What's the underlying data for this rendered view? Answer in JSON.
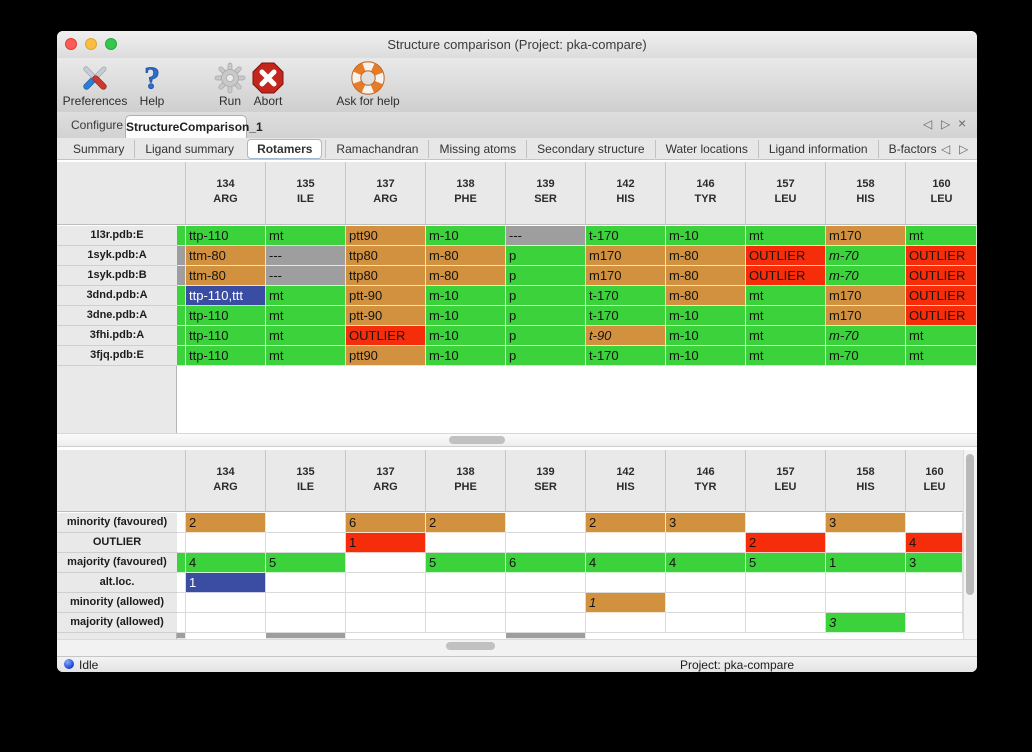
{
  "window": {
    "title": "Structure comparison (Project: pka-compare)"
  },
  "titlebar": {
    "buttons": [
      "close",
      "minimize",
      "zoom"
    ]
  },
  "toolbar": {
    "items": [
      {
        "label": "Preferences",
        "icon": "tools-icon"
      },
      {
        "label": "Help",
        "icon": "help-icon"
      },
      {
        "label": "Run",
        "icon": "gear-icon"
      },
      {
        "label": "Abort",
        "icon": "abort-icon"
      },
      {
        "label": "Ask for help",
        "icon": "lifebuoy-icon"
      }
    ]
  },
  "tabs": {
    "items": [
      {
        "label": "Configure",
        "selected": false
      },
      {
        "label": "StructureComparison_1",
        "selected": true
      }
    ],
    "controls": {
      "prev": "◁",
      "next": "▷",
      "close": "×"
    }
  },
  "subtabs": {
    "items": [
      "Summary",
      "Ligand summary",
      "Rotamers",
      "Ramachandran",
      "Missing atoms",
      "Secondary structure",
      "Water locations",
      "Ligand information",
      "B-factors"
    ],
    "selected": "Rotamers",
    "controls": {
      "prev": "◁",
      "next": "▷"
    }
  },
  "palette": {
    "green": "#3cd23c",
    "orange": "#d2913f",
    "red": "#f62d0a",
    "blue": "#3b4da2",
    "gray": "#9e9e9e"
  },
  "columns": [
    [
      "134",
      "ARG"
    ],
    [
      "135",
      "ILE"
    ],
    [
      "137",
      "ARG"
    ],
    [
      "138",
      "PHE"
    ],
    [
      "139",
      "SER"
    ],
    [
      "142",
      "HIS"
    ],
    [
      "146",
      "TYR"
    ],
    [
      "157",
      "LEU"
    ],
    [
      "158",
      "HIS"
    ],
    [
      "160",
      "LEU"
    ]
  ],
  "rotamer_table": {
    "rows": [
      {
        "label": "1l3r.pdb:E",
        "strip": "green",
        "cells": [
          [
            "ttp-110",
            "green"
          ],
          [
            "mt",
            "green"
          ],
          [
            "ptt90",
            "orange"
          ],
          [
            "m-10",
            "green"
          ],
          [
            "---",
            "gray"
          ],
          [
            "t-170",
            "green"
          ],
          [
            "m-10",
            "green"
          ],
          [
            "mt",
            "green"
          ],
          [
            "m170",
            "orange"
          ],
          [
            "mt",
            "green"
          ]
        ]
      },
      {
        "label": "1syk.pdb:A",
        "strip": "gray",
        "cells": [
          [
            "ttm-80",
            "orange"
          ],
          [
            "---",
            "gray"
          ],
          [
            "ttp80",
            "orange"
          ],
          [
            "m-80",
            "orange"
          ],
          [
            "p",
            "green"
          ],
          [
            "m170",
            "orange"
          ],
          [
            "m-80",
            "orange"
          ],
          [
            "OUTLIER",
            "red"
          ],
          [
            "m-70",
            "green",
            "i"
          ],
          [
            "OUTLIER",
            "red"
          ]
        ]
      },
      {
        "label": "1syk.pdb:B",
        "strip": "gray",
        "cells": [
          [
            "ttm-80",
            "orange"
          ],
          [
            "---",
            "gray"
          ],
          [
            "ttp80",
            "orange"
          ],
          [
            "m-80",
            "orange"
          ],
          [
            "p",
            "green"
          ],
          [
            "m170",
            "orange"
          ],
          [
            "m-80",
            "orange"
          ],
          [
            "OUTLIER",
            "red"
          ],
          [
            "m-70",
            "green",
            "i"
          ],
          [
            "OUTLIER",
            "red"
          ]
        ]
      },
      {
        "label": "3dnd.pdb:A",
        "strip": "green",
        "cells": [
          [
            "ttp-110,ttt",
            "blue",
            "sel"
          ],
          [
            "mt",
            "green"
          ],
          [
            "ptt-90",
            "orange"
          ],
          [
            "m-10",
            "green"
          ],
          [
            "p",
            "green"
          ],
          [
            "t-170",
            "green"
          ],
          [
            "m-80",
            "orange"
          ],
          [
            "mt",
            "green"
          ],
          [
            "m170",
            "orange"
          ],
          [
            "OUTLIER",
            "red"
          ]
        ]
      },
      {
        "label": "3dne.pdb:A",
        "strip": "green",
        "cells": [
          [
            "ttp-110",
            "green"
          ],
          [
            "mt",
            "green"
          ],
          [
            "ptt-90",
            "orange"
          ],
          [
            "m-10",
            "green"
          ],
          [
            "p",
            "green"
          ],
          [
            "t-170",
            "green"
          ],
          [
            "m-10",
            "green"
          ],
          [
            "mt",
            "green"
          ],
          [
            "m170",
            "orange"
          ],
          [
            "OUTLIER",
            "red"
          ]
        ]
      },
      {
        "label": "3fhi.pdb:A",
        "strip": "green",
        "cells": [
          [
            "ttp-110",
            "green"
          ],
          [
            "mt",
            "green"
          ],
          [
            "OUTLIER",
            "red"
          ],
          [
            "m-10",
            "green"
          ],
          [
            "p",
            "green"
          ],
          [
            "t-90",
            "orange",
            "i"
          ],
          [
            "m-10",
            "green"
          ],
          [
            "mt",
            "green"
          ],
          [
            "m-70",
            "green",
            "i"
          ],
          [
            "mt",
            "green"
          ]
        ]
      },
      {
        "label": "3fjq.pdb:E",
        "strip": "green",
        "cells": [
          [
            "ttp-110",
            "green"
          ],
          [
            "mt",
            "green"
          ],
          [
            "ptt90",
            "orange"
          ],
          [
            "m-10",
            "green"
          ],
          [
            "p",
            "green"
          ],
          [
            "t-170",
            "green"
          ],
          [
            "m-10",
            "green"
          ],
          [
            "mt",
            "green"
          ],
          [
            "m-70",
            "green"
          ],
          [
            "mt",
            "green"
          ]
        ]
      }
    ]
  },
  "summary_table": {
    "rows": [
      {
        "label": "minority (favoured)",
        "strip": null,
        "cells": [
          [
            "2",
            "orange"
          ],
          null,
          [
            "6",
            "orange"
          ],
          [
            "2",
            "orange"
          ],
          null,
          [
            "2",
            "orange"
          ],
          [
            "3",
            "orange"
          ],
          null,
          [
            "3",
            "orange"
          ],
          null
        ]
      },
      {
        "label": "OUTLIER",
        "strip": null,
        "cells": [
          null,
          null,
          [
            "1",
            "red"
          ],
          null,
          null,
          null,
          null,
          [
            "2",
            "red"
          ],
          null,
          [
            "4",
            "red"
          ]
        ]
      },
      {
        "label": "majority (favoured)",
        "strip": "green",
        "cells": [
          [
            "4",
            "green"
          ],
          [
            "5",
            "green"
          ],
          null,
          [
            "5",
            "green"
          ],
          [
            "6",
            "green"
          ],
          [
            "4",
            "green"
          ],
          [
            "4",
            "green"
          ],
          [
            "5",
            "green"
          ],
          [
            "1",
            "green"
          ],
          [
            "3",
            "green"
          ]
        ]
      },
      {
        "label": "alt.loc.",
        "strip": null,
        "cells": [
          [
            "1",
            "blue",
            "sel"
          ],
          null,
          null,
          null,
          null,
          null,
          null,
          null,
          null,
          null
        ]
      },
      {
        "label": "minority (allowed)",
        "strip": null,
        "cells": [
          null,
          null,
          null,
          null,
          null,
          [
            "1",
            "orange",
            "i"
          ],
          null,
          null,
          null,
          null
        ]
      },
      {
        "label": "majority (allowed)",
        "strip": null,
        "cells": [
          null,
          null,
          null,
          null,
          null,
          null,
          null,
          null,
          [
            "3",
            "green",
            "i"
          ],
          null
        ]
      }
    ],
    "partial_row": {
      "strip": "gray",
      "gray_columns": [
        1,
        4
      ]
    }
  },
  "statusbar": {
    "status": "Idle",
    "project": "Project: pka-compare"
  }
}
